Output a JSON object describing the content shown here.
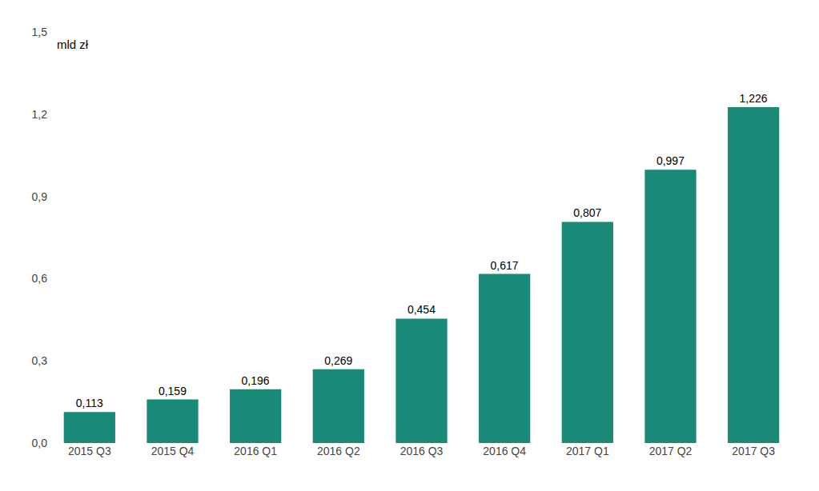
{
  "chart_data": {
    "type": "bar",
    "categories": [
      "2015 Q3",
      "2015 Q4",
      "2016 Q1",
      "2016 Q2",
      "2016 Q3",
      "2016 Q4",
      "2017 Q1",
      "2017 Q2",
      "2017 Q3"
    ],
    "values": [
      0.113,
      0.159,
      0.196,
      0.269,
      0.454,
      0.617,
      0.807,
      0.997,
      1.226
    ],
    "value_labels": [
      "0,113",
      "0,159",
      "0,196",
      "0,269",
      "0,454",
      "0,617",
      "0,807",
      "0,997",
      "1,226"
    ],
    "data_labels": true,
    "color": "#1a8a78",
    "annotation": "mld zł",
    "ylim": [
      0,
      1.5
    ],
    "yticks": [
      {
        "value": 0.0,
        "label": "0,0"
      },
      {
        "value": 0.3,
        "label": "0,3"
      },
      {
        "value": 0.6,
        "label": "0,6"
      },
      {
        "value": 0.9,
        "label": "0,9"
      },
      {
        "value": 1.2,
        "label": "1,2"
      },
      {
        "value": 1.5,
        "label": "1,5"
      }
    ],
    "grid": false
  }
}
